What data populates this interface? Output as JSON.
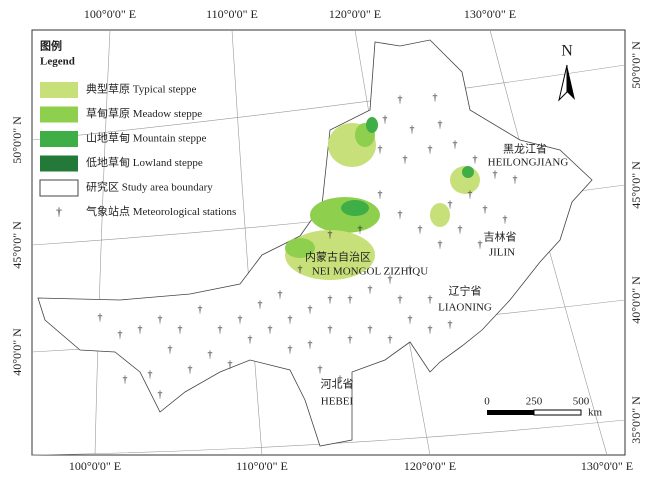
{
  "map": {
    "longitude_labels_top": [
      "100°0'0\" E",
      "110°0'0\" E",
      "120°0'0\" E",
      "130°0'0\" E"
    ],
    "longitude_labels_bottom": [
      "100°0'0\" E",
      "110°0'0\" E",
      "120°0'0\" E",
      "130°0'0\" E"
    ],
    "latitude_labels_left": [
      "50°0'0\" N",
      "45°0'0\" N",
      "40°0'0\" N"
    ],
    "latitude_labels_right": [
      "50°0'0\" N",
      "45°0'0\" N",
      "40°0'0\" N",
      "35°0'0\" N"
    ],
    "legend": {
      "title_cn": "图例",
      "title_en": "Legend",
      "items": [
        "典型草原 Typical steppe",
        "草甸草原 Meadow steppe",
        "山地草甸 Mountain steppe",
        "低地草甸 Lowland steppe",
        "研究区 Study area boundary",
        "气象站点 Meteorological stations"
      ]
    },
    "places": [
      "黑龙江省",
      "HEILONGJIANG",
      "吉林省",
      "JILIN",
      "内蒙古自治区",
      "NEI MONGOL ZIZHIQU",
      "辽宁省",
      "LIAONING",
      "河北省",
      "HEBEI"
    ],
    "scale_bar": {
      "ticks": [
        "0",
        "250",
        "500"
      ],
      "unit": "km"
    },
    "north": "N"
  }
}
